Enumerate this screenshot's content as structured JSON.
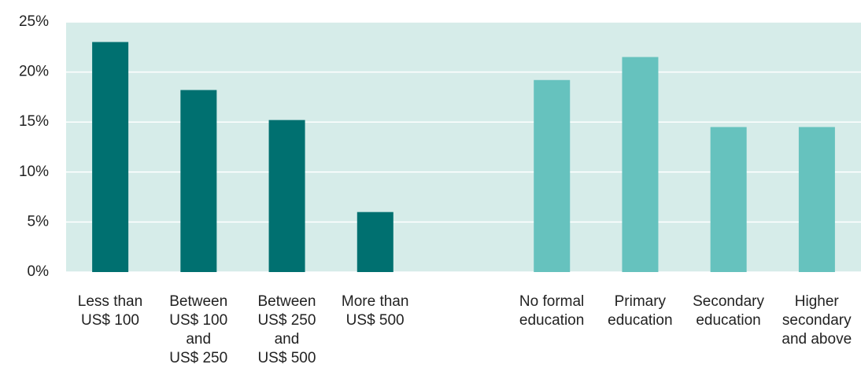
{
  "chart_data": {
    "type": "bar",
    "categories": [
      "Less than\nUS$ 100",
      "Between\nUS$ 100\nand\nUS$ 250",
      "Between\nUS$ 250\nand\nUS$ 500",
      "More than\nUS$ 500",
      null,
      "No formal\neducation",
      "Primary\neducation",
      "Secondary\neducation",
      "Higher\nsecondary\nand above"
    ],
    "values": [
      23.0,
      18.2,
      15.2,
      6.0,
      null,
      19.2,
      21.5,
      14.5,
      14.5
    ],
    "colors": [
      "#007070",
      "#007070",
      "#007070",
      "#007070",
      null,
      "#66c2be",
      "#66c2be",
      "#66c2be",
      "#66c2be"
    ],
    "ylim": [
      0,
      25
    ],
    "yticks": [
      {
        "value": 0,
        "label": "0%"
      },
      {
        "value": 5,
        "label": "5%"
      },
      {
        "value": 10,
        "label": "10%"
      },
      {
        "value": 15,
        "label": "15%"
      },
      {
        "value": 20,
        "label": "20%"
      },
      {
        "value": 25,
        "label": "25%"
      }
    ],
    "grid": true
  }
}
